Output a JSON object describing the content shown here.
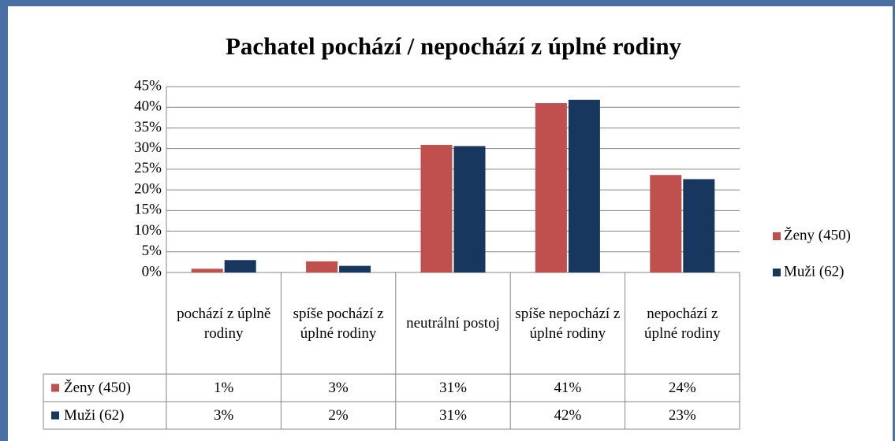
{
  "chart_data": {
    "type": "bar",
    "title": "Pachatel pochází / nepochází z úplné rodiny",
    "categories": [
      "pochází z úplně rodiny",
      "spíše pochází z úplné rodiny",
      "neutrální postoj",
      "spíše nepochází z úplné rodiny",
      "nepochází z úplné rodiny"
    ],
    "series": [
      {
        "name": "Ženy (450)",
        "color": "#c0504d",
        "values": [
          0.9,
          2.7,
          30.9,
          41.0,
          23.6
        ],
        "value_labels": [
          "1%",
          "3%",
          "31%",
          "41%",
          "24%"
        ]
      },
      {
        "name": "Muži (62)",
        "color": "#17375e",
        "values": [
          3.0,
          1.6,
          30.6,
          41.8,
          22.6
        ],
        "value_labels": [
          "3%",
          "2%",
          "31%",
          "42%",
          "23%"
        ]
      }
    ],
    "ylim": [
      0,
      45
    ],
    "yticks": [
      {
        "value": 0,
        "label": "0%"
      },
      {
        "value": 5,
        "label": "5%"
      },
      {
        "value": 10,
        "label": "10%"
      },
      {
        "value": 15,
        "label": "15%"
      },
      {
        "value": 20,
        "label": "20%"
      },
      {
        "value": 25,
        "label": "25%"
      },
      {
        "value": 30,
        "label": "30%"
      },
      {
        "value": 35,
        "label": "35%"
      },
      {
        "value": 40,
        "label": "40%"
      },
      {
        "value": 45,
        "label": "45%"
      }
    ],
    "grid": true,
    "legend": "right"
  }
}
